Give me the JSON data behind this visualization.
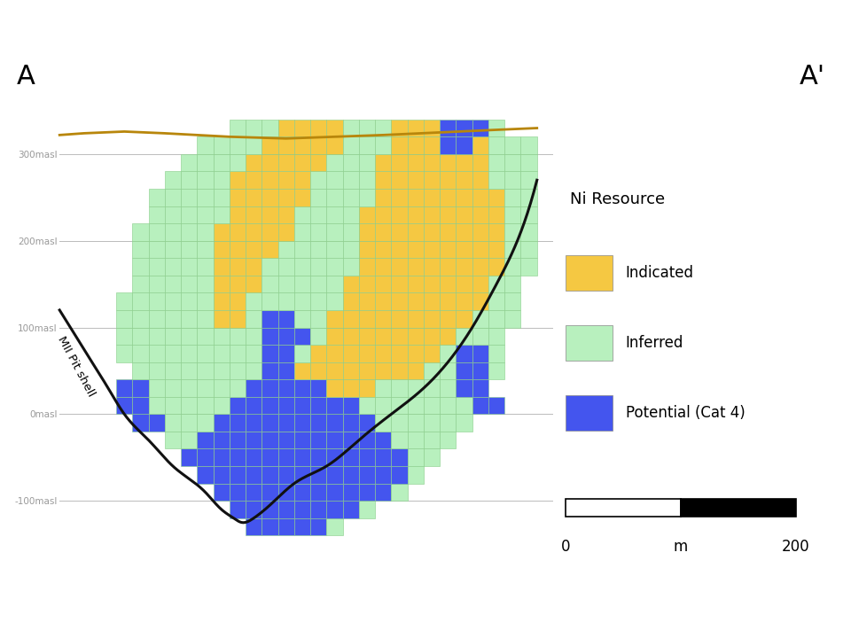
{
  "background_color": "#ffffff",
  "colors": {
    "indicated": "#F5C842",
    "inferred": "#B8F0BE",
    "potential": "#4455EE",
    "grid_line": "#88CC88",
    "pit_shell": "#111111",
    "surface_line": "#B8860B"
  },
  "yticks": [
    -100,
    0,
    100,
    200,
    300
  ],
  "ytick_labels": [
    "-100masl",
    "0masl",
    "100masl",
    "200masl",
    "300masl"
  ],
  "legend_title": "Ni Resource",
  "legend_items": [
    "Indicated",
    "Inferred",
    "Potential (Cat 4)"
  ],
  "scale_bar": {
    "label_left": "0",
    "label_mid": "m",
    "label_right": "200"
  },
  "label_A": "A",
  "label_A_prime": "A'",
  "pit_label": "MII Pit shell",
  "cell_size": 16
}
